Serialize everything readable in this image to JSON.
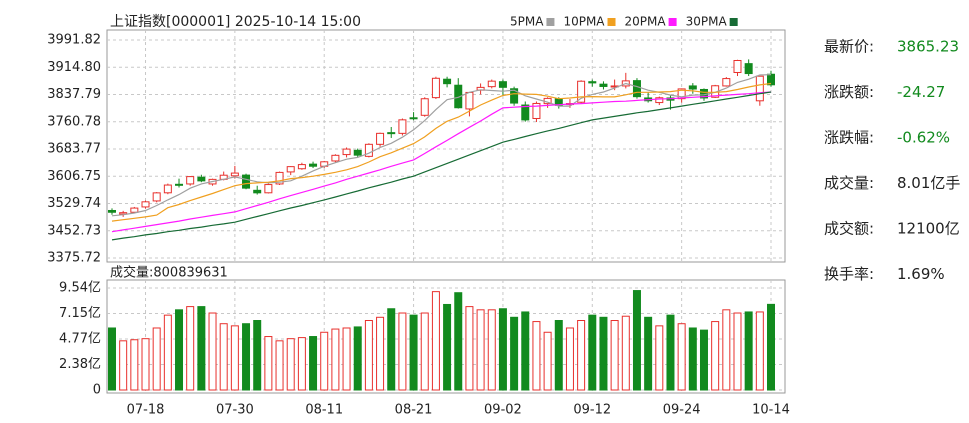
{
  "chart_data": {
    "type": "candlestick",
    "title": "上证指数[000001] 2025-10-14 15:00",
    "categories": [
      null,
      null,
      null,
      "07-18",
      null,
      null,
      null,
      null,
      null,
      null,
      null,
      "07-30",
      null,
      null,
      null,
      null,
      null,
      null,
      null,
      "08-11",
      null,
      null,
      null,
      null,
      null,
      null,
      null,
      "08-21",
      null,
      null,
      null,
      null,
      null,
      null,
      null,
      "09-02",
      null,
      null,
      null,
      null,
      null,
      null,
      null,
      "09-12",
      null,
      null,
      null,
      null,
      null,
      null,
      null,
      "09-24",
      null,
      null,
      null,
      null,
      null,
      null,
      null,
      "10-14"
    ],
    "open": [
      3510,
      3500,
      3505,
      3520,
      3537,
      3560,
      3584,
      3585,
      3604,
      3585,
      3598,
      3608,
      3610,
      3567,
      3560,
      3585,
      3619,
      3628,
      3641,
      3635,
      3650,
      3668,
      3680,
      3663,
      3697,
      3730,
      3728,
      3772,
      3779,
      3829,
      3881,
      3864,
      3797,
      3850,
      3860,
      3874,
      3854,
      3808,
      3770,
      3812,
      3826,
      3810,
      3816,
      3874,
      3867,
      3859,
      3862,
      3877,
      3828,
      3815,
      3828,
      3826,
      3862,
      3852,
      3830,
      3862,
      3900,
      3925,
      3820,
      3895
    ],
    "high": [
      3516,
      3509,
      3520,
      3538,
      3562,
      3586,
      3600,
      3607,
      3611,
      3600,
      3620,
      3636,
      3614,
      3580,
      3586,
      3620,
      3635,
      3645,
      3648,
      3650,
      3669,
      3688,
      3685,
      3700,
      3730,
      3746,
      3770,
      3788,
      3830,
      3888,
      3888,
      3884,
      3845,
      3869,
      3880,
      3880,
      3860,
      3818,
      3818,
      3830,
      3830,
      3825,
      3878,
      3880,
      3875,
      3880,
      3899,
      3884,
      3845,
      3832,
      3835,
      3855,
      3870,
      3855,
      3865,
      3887,
      3936,
      3937,
      3890,
      3905
    ],
    "low": [
      3498,
      3492,
      3502,
      3515,
      3533,
      3556,
      3575,
      3580,
      3590,
      3580,
      3595,
      3600,
      3570,
      3555,
      3558,
      3582,
      3610,
      3625,
      3630,
      3630,
      3645,
      3660,
      3660,
      3660,
      3690,
      3715,
      3722,
      3765,
      3775,
      3825,
      3858,
      3798,
      3776,
      3838,
      3855,
      3835,
      3806,
      3761,
      3760,
      3800,
      3798,
      3800,
      3812,
      3860,
      3852,
      3850,
      3855,
      3826,
      3815,
      3808,
      3795,
      3815,
      3840,
      3820,
      3828,
      3860,
      3890,
      3890,
      3806,
      3860
    ],
    "close": [
      3505.0,
      3503.8,
      3516.8,
      3534.5,
      3559.8,
      3581.9,
      3582.3,
      3605.7,
      3593.7,
      3597.9,
      3609.7,
      3615.7,
      3573.2,
      3559.9,
      3583.3,
      3617.6,
      3633.9,
      3639.7,
      3635.1,
      3647.6,
      3665.9,
      3683.5,
      3666.4,
      3697.0,
      3728.0,
      3727.3,
      3766.2,
      3771.1,
      3825.8,
      3883.6,
      3868.4,
      3800.4,
      3843.6,
      3857.9,
      3875.5,
      3858.1,
      3813.6,
      3765.9,
      3812.5,
      3826.8,
      3807.3,
      3812.2,
      3875.3,
      3870.6,
      3860.5,
      3861.9,
      3876.3,
      3831.7,
      3820.1,
      3828.6,
      3821.8,
      3853.6,
      3853.3,
      3828.1,
      3862.5,
      3882.8,
      3933.9,
      3897.0,
      3889.5,
      3865.23
    ],
    "up_color": "#e8302c",
    "down_color": "#128a1e",
    "series": [
      {
        "name": "5PMA",
        "color": "#a0a0a0",
        "values": [
          3495,
          3498,
          3503,
          3510,
          3524,
          3540,
          3555,
          3573,
          3585,
          3592,
          3598,
          3605,
          3598,
          3591,
          3588,
          3590,
          3594,
          3607,
          3622,
          3635,
          3645,
          3655,
          3660,
          3672,
          3688,
          3700,
          3717,
          3738,
          3764,
          3795,
          3823,
          3830,
          3844,
          3851,
          3849,
          3847,
          3850,
          3834,
          3825,
          3816,
          3805,
          3805,
          3827,
          3838,
          3845,
          3856,
          3869,
          3860,
          3850,
          3844,
          3836,
          3831,
          3836,
          3837,
          3844,
          3856,
          3872,
          3881,
          3893,
          3894
        ]
      },
      {
        "name": "10PMA",
        "color": "#f0a020",
        "values": [
          3480,
          3484,
          3488,
          3492,
          3497,
          3518,
          3527,
          3538,
          3548,
          3558,
          3569,
          3580,
          3586,
          3588,
          3590,
          3594,
          3600,
          3603,
          3607,
          3612,
          3618,
          3625,
          3634,
          3647,
          3662,
          3673,
          3686,
          3699,
          3718,
          3742,
          3762,
          3774,
          3791,
          3808,
          3822,
          3835,
          3840,
          3839,
          3838,
          3833,
          3826,
          3828,
          3831,
          3832,
          3831,
          3831,
          3837,
          3844,
          3844,
          3845,
          3846,
          3850,
          3848,
          3844,
          3844,
          3846,
          3852,
          3859,
          3865,
          3869
        ]
      },
      {
        "name": "20PMA",
        "color": "#ff1aff",
        "values": [
          3450,
          3455,
          3460,
          3465,
          3470,
          3475,
          3480,
          3486,
          3491,
          3496,
          3501,
          3506,
          3515,
          3524,
          3533,
          3543,
          3552,
          3561,
          3570,
          3579,
          3588,
          3598,
          3607,
          3616,
          3625,
          3635,
          3644,
          3653,
          3671,
          3690,
          3708,
          3727,
          3745,
          3763,
          3782,
          3800,
          3802,
          3804,
          3805,
          3807,
          3809,
          3811,
          3812,
          3814,
          3816,
          3818,
          3819,
          3821,
          3823,
          3825,
          3826,
          3828,
          3830,
          3832,
          3834,
          3836,
          3838,
          3840,
          3843,
          3845
        ]
      },
      {
        "name": "30PMA",
        "color": "#176b35",
        "values": [
          3427,
          3432,
          3436,
          3441,
          3445,
          3450,
          3454,
          3459,
          3463,
          3468,
          3472,
          3477,
          3485,
          3493,
          3501,
          3509,
          3517,
          3524,
          3532,
          3540,
          3548,
          3557,
          3565,
          3574,
          3582,
          3590,
          3599,
          3607,
          3619,
          3631,
          3643,
          3655,
          3667,
          3679,
          3691,
          3703,
          3711,
          3719,
          3727,
          3735,
          3742,
          3750,
          3758,
          3766,
          3771,
          3776,
          3781,
          3786,
          3790,
          3795,
          3800,
          3805,
          3810,
          3815,
          3820,
          3825,
          3830,
          3835,
          3840,
          3845
        ]
      }
    ],
    "ylim": [
      3375.72,
      3991.82
    ],
    "yticks": [
      3375.72,
      3452.73,
      3529.74,
      3606.75,
      3683.77,
      {
        "value": 3760.78,
        "label": "3760.78"
      },
      3837.79,
      {
        "value": 3914.8,
        "label": "3914.80"
      },
      3991.82
    ],
    "grid": true,
    "volume": {
      "title": "成交量:800839631",
      "values": [
        5.8,
        4.6,
        4.7,
        4.8,
        5.8,
        7.0,
        7.5,
        7.8,
        7.8,
        7.2,
        6.2,
        6.0,
        6.2,
        6.5,
        5.0,
        4.6,
        4.8,
        4.9,
        5.0,
        5.4,
        5.7,
        5.8,
        5.9,
        6.5,
        6.8,
        7.6,
        7.2,
        7.0,
        7.2,
        9.2,
        8.0,
        9.1,
        7.8,
        7.5,
        7.5,
        7.6,
        6.8,
        7.3,
        6.4,
        5.4,
        6.5,
        5.8,
        6.5,
        7.0,
        6.8,
        6.5,
        6.9,
        9.3,
        6.8,
        6.0,
        7.0,
        6.2,
        5.8,
        5.6,
        6.4,
        7.5,
        7.2,
        7.3,
        7.3,
        8.01
      ],
      "ylim": [
        0,
        9.54
      ],
      "yticks": [
        0,
        {
          "value": 2.38,
          "label": "2.38亿"
        },
        {
          "value": 4.77,
          "label": "4.77亿"
        },
        {
          "value": 7.15,
          "label": "7.15亿"
        },
        {
          "value": 9.54,
          "label": "9.54亿"
        }
      ]
    }
  },
  "info": [
    {
      "label": "最新价:",
      "value": "3865.23",
      "color": "#128a1e"
    },
    {
      "label": "涨跌额:",
      "value": "-24.27",
      "color": "#128a1e"
    },
    {
      "label": "涨跌幅:",
      "value": "-0.62%",
      "color": "#128a1e"
    },
    {
      "label": "成交量:",
      "value": "8.01亿手",
      "color": "#222222"
    },
    {
      "label": "成交额:",
      "value": "12100亿",
      "color": "#222222"
    },
    {
      "label": "换手率:",
      "value": "1.69%",
      "color": "#222222"
    }
  ]
}
